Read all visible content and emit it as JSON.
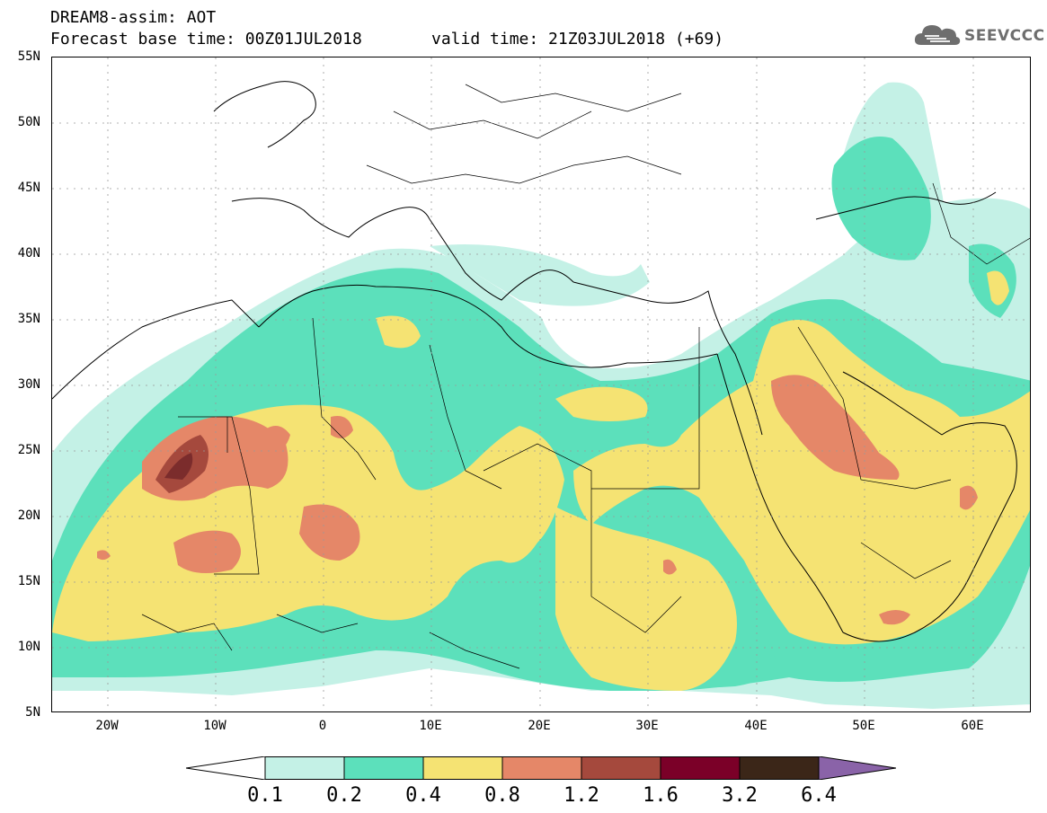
{
  "header": {
    "line1": "DREAM8-assim: AOT",
    "line2": "Forecast base time: 00Z01JUL2018",
    "line2b": "valid time: 21Z03JUL2018 (+69)"
  },
  "logo": {
    "text": "SEEVCCC",
    "icon": "cloud-icon"
  },
  "axes": {
    "lat_labels": [
      "55N",
      "50N",
      "45N",
      "40N",
      "35N",
      "30N",
      "25N",
      "20N",
      "15N",
      "10N",
      "5N"
    ],
    "lon_labels": [
      "20W",
      "10W",
      "0",
      "10E",
      "20E",
      "30E",
      "40E",
      "50E",
      "60E"
    ]
  },
  "colorbar": {
    "labels": [
      "0.1",
      "0.2",
      "0.4",
      "0.8",
      "1.2",
      "1.6",
      "3.2",
      "6.4"
    ],
    "colors": [
      "#ffffff",
      "#c4f1e6",
      "#5ce0bb",
      "#f5e373",
      "#e58768",
      "#a5493d",
      "#7b0028",
      "#3b2618",
      "#8a63a8"
    ]
  },
  "palette": {
    "aqua": "#c4f1e6",
    "green": "#5ce0bb",
    "yellow": "#f5e373",
    "orange": "#e58768",
    "brown": "#a5493d",
    "dark": "#7b2c2c"
  }
}
